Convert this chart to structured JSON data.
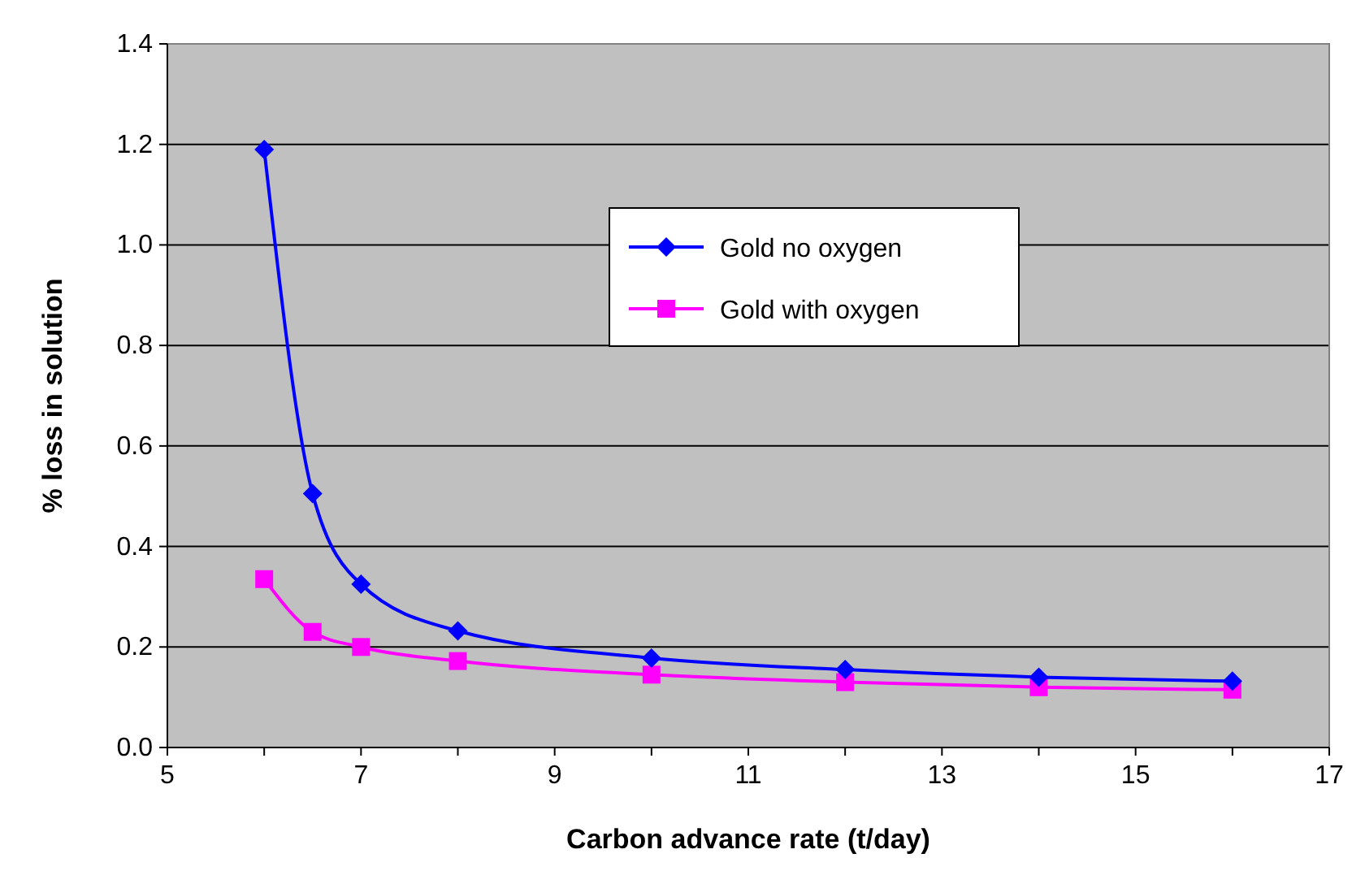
{
  "chart_data": {
    "type": "line",
    "xlabel": "Carbon advance rate (t/day)",
    "ylabel": "% loss in solution",
    "x": [
      6,
      6.5,
      7,
      8,
      10,
      12,
      14,
      16
    ],
    "series": [
      {
        "name": "Gold no oxygen",
        "color": "#0000ff",
        "marker": "diamond",
        "values": [
          1.19,
          0.505,
          0.325,
          0.232,
          0.178,
          0.155,
          0.14,
          0.132
        ]
      },
      {
        "name": "Gold with oxygen",
        "color": "#ff00ff",
        "marker": "square",
        "values": [
          0.335,
          0.23,
          0.2,
          0.172,
          0.145,
          0.13,
          0.12,
          0.115
        ]
      }
    ],
    "xlim": [
      5,
      17
    ],
    "xticks": [
      5,
      {
        "value": 6,
        "label": null
      },
      7,
      {
        "value": 8,
        "label": null
      },
      9,
      {
        "value": 10,
        "label": null
      },
      11,
      {
        "value": 12,
        "label": null
      },
      13,
      {
        "value": 14,
        "label": null
      },
      15,
      {
        "value": 16,
        "label": null
      },
      17
    ],
    "ylim": [
      0,
      1.4
    ],
    "yticks": [
      {
        "value": 0,
        "label": "0.0"
      },
      {
        "value": 0.2,
        "label": "0.2"
      },
      {
        "value": 0.4,
        "label": "0.4"
      },
      {
        "value": 0.6,
        "label": "0.6"
      },
      {
        "value": 0.8,
        "label": "0.8"
      },
      {
        "value": 1,
        "label": "1.0"
      },
      {
        "value": 1.2,
        "label": "1.2"
      },
      {
        "value": 1.4,
        "label": "1.4"
      }
    ],
    "grid": "y",
    "legend": "top right",
    "line_style": "solid"
  }
}
